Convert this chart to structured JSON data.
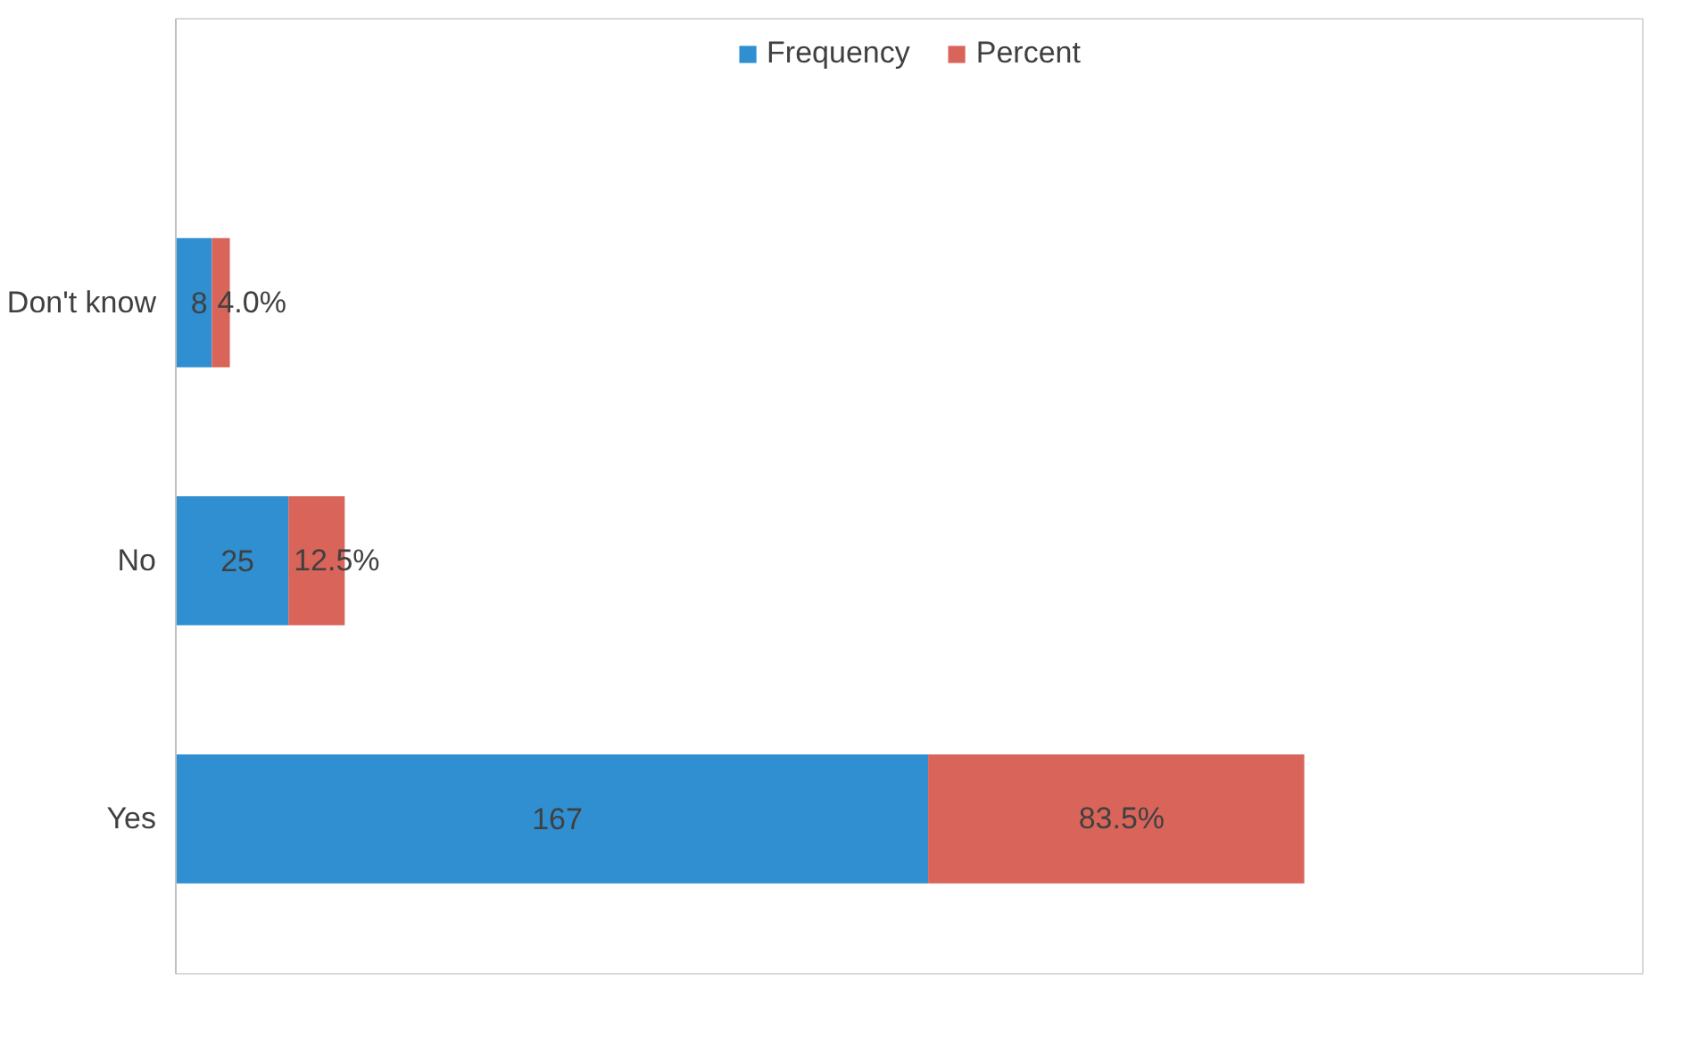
{
  "chart_data": {
    "type": "bar",
    "orientation": "horizontal",
    "stacked": true,
    "categories": [
      "Don't know",
      "No",
      "Yes"
    ],
    "series": [
      {
        "name": "Frequency",
        "color": "#2f8fd1",
        "values": [
          8,
          25,
          167
        ],
        "value_labels": [
          "8",
          "25",
          "167"
        ]
      },
      {
        "name": "Percent",
        "color": "#d9645a",
        "values": [
          4.0,
          12.5,
          83.5
        ],
        "value_labels": [
          "4.0%",
          "12.5%",
          "83.5%"
        ]
      }
    ],
    "legend": "top",
    "grid": false
  }
}
